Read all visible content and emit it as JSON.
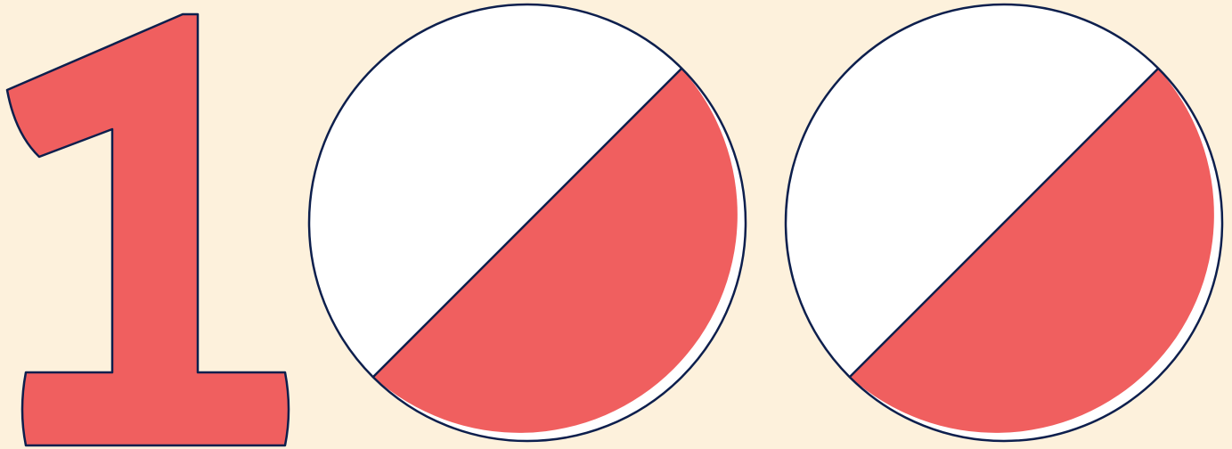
{
  "colors": {
    "background": "#fdf1dc",
    "fill": "#f05f5f",
    "white": "#ffffff",
    "outline": "#0d1f4d"
  },
  "graphic": {
    "name": "one-hundred-emblem",
    "glyphs": [
      "1",
      "0",
      "0"
    ]
  }
}
